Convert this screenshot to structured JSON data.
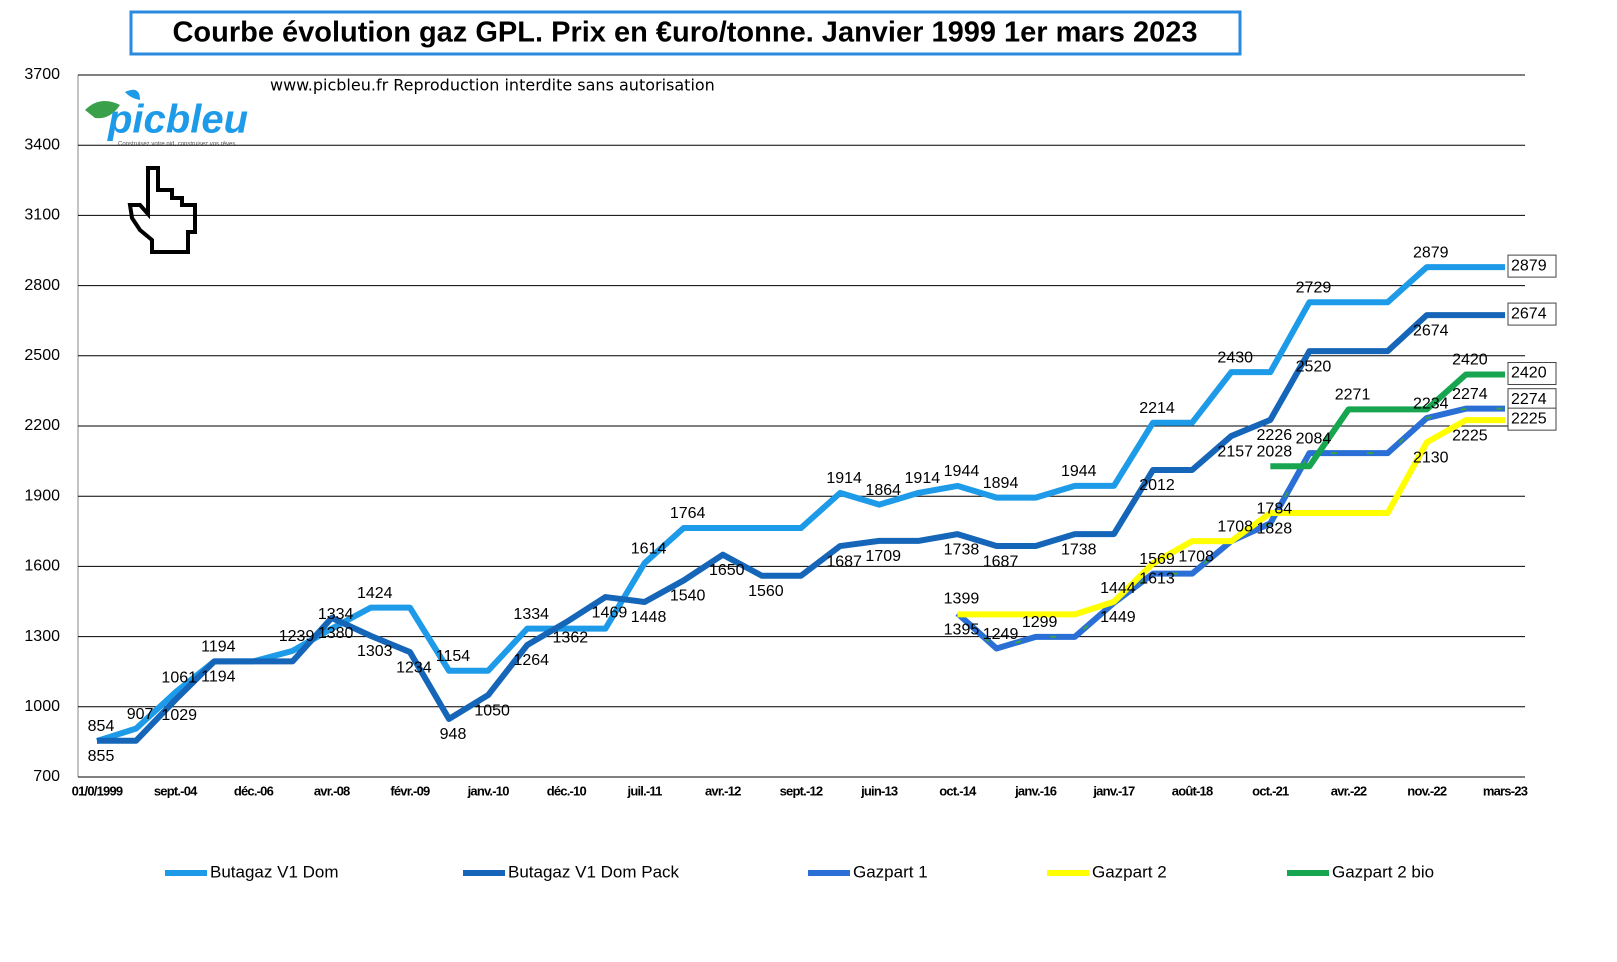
{
  "chart_data": {
    "type": "line",
    "title": "Courbe évolution gaz GPL. Prix en €uro/tonne. Janvier 1999 1er mars 2023",
    "annotation": "www.picbleu.fr   Reproduction interdite sans autorisation",
    "logo": "picbleu",
    "logo_tagline": "Construisez votre nid, construisez vos rêves",
    "categories": [
      "01/0/1999",
      null,
      "sept.-04",
      null,
      "déc.-06",
      null,
      "avr.-08",
      null,
      "févr.-09",
      null,
      "janv.-10",
      null,
      "déc.-10",
      null,
      "juil.-11",
      null,
      "avr.-12",
      null,
      "sept.-12",
      null,
      "juin-13",
      null,
      "oct.-14",
      null,
      "janv.-16",
      null,
      "janv.-17",
      null,
      "août-18",
      null,
      "oct.-21",
      null,
      "avr.-22",
      null,
      "nov.-22",
      null,
      "mars-23"
    ],
    "ylim": [
      700,
      3700
    ],
    "yticks": [
      700,
      1000,
      1300,
      1600,
      1900,
      2200,
      2500,
      2800,
      3100,
      3400,
      3700
    ],
    "grid": true,
    "legend": "bottom",
    "series": [
      {
        "name": "Butagaz V1 Dom",
        "color": "#1e9be8",
        "values": [
          854,
          907,
          1061,
          1194,
          1194,
          1239,
          1334,
          1424,
          1424,
          1154,
          1154,
          1334,
          1334,
          1334,
          1614,
          1764,
          1764,
          1764,
          1764,
          1914,
          1864,
          1914,
          1944,
          1894,
          1894,
          1944,
          1944,
          2214,
          2214,
          2430,
          2430,
          2729,
          2729,
          2729,
          2879,
          2879,
          2879
        ]
      },
      {
        "name": "Butagaz V1 Dom Pack",
        "color": "#1566b8",
        "values": [
          855,
          855,
          1029,
          1194,
          1194,
          1194,
          1380,
          1303,
          1234,
          948,
          1050,
          1264,
          1362,
          1469,
          1448,
          1540,
          1650,
          1560,
          1560,
          1687,
          1709,
          1709,
          1738,
          1687,
          1687,
          1738,
          1738,
          2012,
          2012,
          2157,
          2226,
          2520,
          2520,
          2520,
          2674,
          2674,
          2674
        ]
      },
      {
        "name": "Gazpart 1",
        "color": "#2a6fd6",
        "values": [
          null,
          null,
          null,
          null,
          null,
          null,
          null,
          null,
          null,
          null,
          null,
          null,
          null,
          null,
          null,
          null,
          null,
          null,
          null,
          null,
          null,
          null,
          1399,
          1249,
          1299,
          1299,
          1444,
          1569,
          1569,
          1708,
          1784,
          2084,
          2084,
          2084,
          2234,
          2274,
          2274
        ]
      },
      {
        "name": "Gazpart 2",
        "color": "#ffff00",
        "values": [
          null,
          null,
          null,
          null,
          null,
          null,
          null,
          null,
          null,
          null,
          null,
          null,
          null,
          null,
          null,
          null,
          null,
          null,
          null,
          null,
          null,
          null,
          1395,
          1395,
          1395,
          1395,
          1449,
          1613,
          1708,
          1708,
          1828,
          1828,
          1828,
          1828,
          2130,
          2225,
          2225
        ]
      },
      {
        "name": "Gazpart 2 bio",
        "color": "#18a550",
        "values": [
          null,
          null,
          null,
          null,
          null,
          null,
          null,
          null,
          null,
          null,
          null,
          null,
          null,
          null,
          null,
          null,
          null,
          null,
          null,
          null,
          null,
          null,
          null,
          null,
          null,
          null,
          null,
          null,
          null,
          null,
          2028,
          2028,
          2271,
          2271,
          2271,
          2420,
          2420
        ]
      }
    ]
  }
}
